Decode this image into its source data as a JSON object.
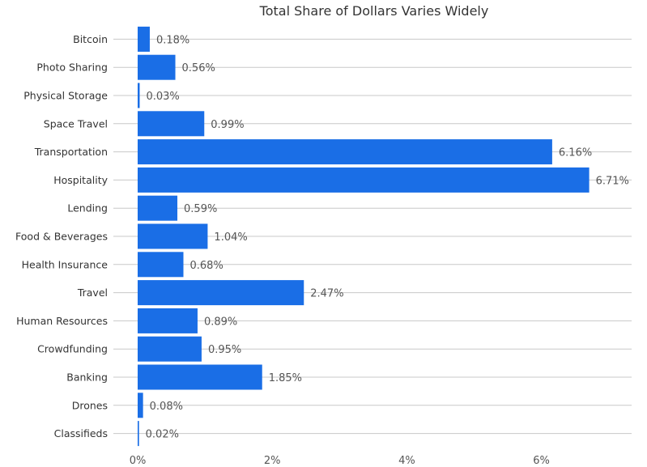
{
  "chart_data": {
    "type": "bar",
    "orientation": "horizontal",
    "title": "Total Share of Dollars Varies Widely",
    "xlabel": "",
    "ylabel": "",
    "categories": [
      "Bitcoin",
      "Photo Sharing",
      "Physical Storage",
      "Space Travel",
      "Transportation",
      "Hospitality",
      "Lending",
      "Food & Beverages",
      "Health Insurance",
      "Travel",
      "Human Resources",
      "Crowdfunding",
      "Banking",
      "Drones",
      "Classifieds"
    ],
    "values": [
      0.18,
      0.56,
      0.03,
      0.99,
      6.16,
      6.71,
      0.59,
      1.04,
      0.68,
      2.47,
      0.89,
      0.95,
      1.85,
      0.08,
      0.02
    ],
    "data_labels": [
      "0.18%",
      "0.56%",
      "0.03%",
      "0.99%",
      "6.16%",
      "6.71%",
      "0.59%",
      "1.04%",
      "0.68%",
      "2.47%",
      "0.89%",
      "0.95%",
      "1.85%",
      "0.08%",
      "0.02%"
    ],
    "xticks": [
      0,
      2,
      4,
      6
    ],
    "xtick_labels": [
      "0%",
      "2%",
      "4%",
      "6%"
    ],
    "xlim": [
      0,
      7.5
    ],
    "grid": true,
    "legend": "none",
    "colors": {
      "bar": "#1a6ee6",
      "grid": "#c8c8c8",
      "text": "#333333",
      "label": "#555555"
    }
  }
}
